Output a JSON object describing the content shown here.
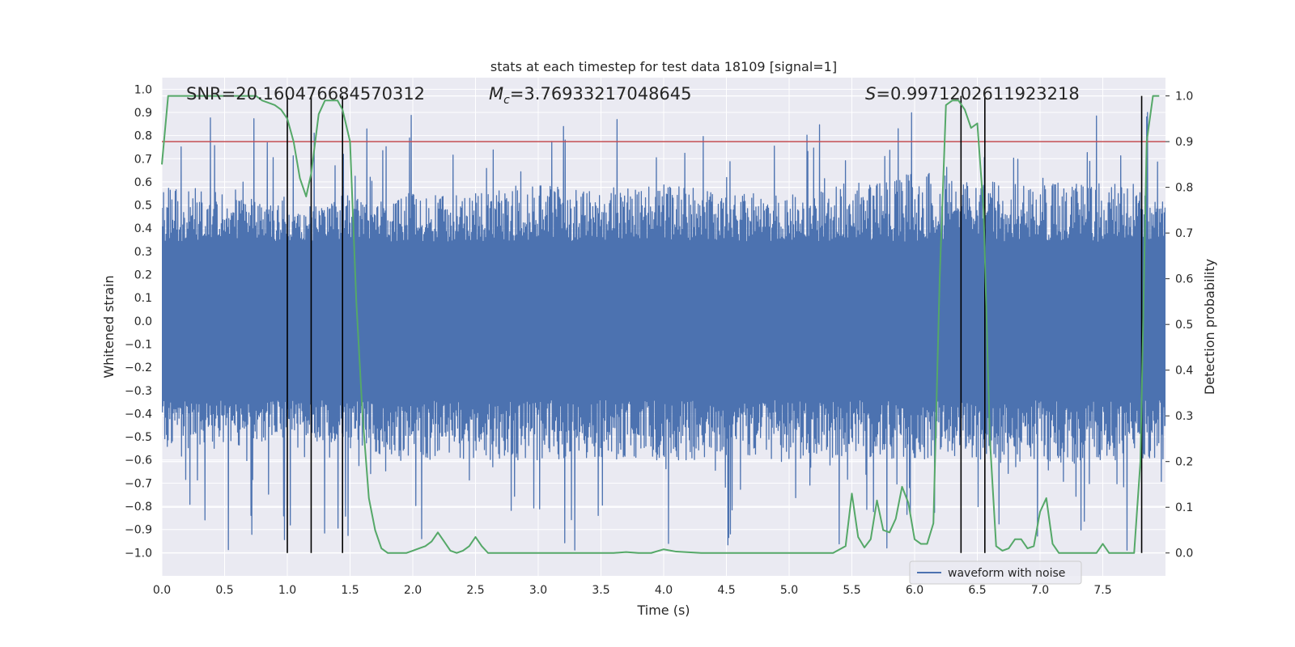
{
  "chart_data": {
    "type": "line",
    "title": "stats at each timestep for test data 18109 [signal=1]",
    "xlabel": "Time (s)",
    "ylabel": "Whitened strain",
    "y2label": "Detection probability",
    "xlim": [
      0,
      8
    ],
    "ylim": [
      -1.1,
      1.05
    ],
    "y2lim": [
      -0.05,
      1.04
    ],
    "xticks": [
      "0.0",
      "0.5",
      "1.0",
      "1.5",
      "2.0",
      "2.5",
      "3.0",
      "3.5",
      "4.0",
      "4.5",
      "5.0",
      "5.5",
      "6.0",
      "6.5",
      "7.0",
      "7.5"
    ],
    "yticks": [
      "−1.0",
      "−0.9",
      "−0.8",
      "−0.7",
      "−0.6",
      "−0.5",
      "−0.4",
      "−0.3",
      "−0.2",
      "−0.1",
      "0.0",
      "0.1",
      "0.2",
      "0.3",
      "0.4",
      "0.5",
      "0.6",
      "0.7",
      "0.8",
      "0.9",
      "1.0"
    ],
    "y2ticks": [
      "0.0",
      "0.1",
      "0.2",
      "0.3",
      "0.4",
      "0.5",
      "0.6",
      "0.7",
      "0.8",
      "0.9",
      "1.0"
    ],
    "annotations": {
      "snr": "SNR=20.160476684570312",
      "mc_symbol": "M",
      "mc_sub": "c",
      "mc_value": "=3.76933217048645",
      "s_symbol": "S",
      "s_value": "=0.9971202611923218"
    },
    "legend": {
      "label": "waveform with noise",
      "location": "lower-right"
    },
    "colors": {
      "waveform": "#4c72b0",
      "probability": "#55a868",
      "threshold": "#c44e52",
      "events": "#000000",
      "background": "#eaeaf2",
      "grid": "#ffffff"
    },
    "waveform_envelope": {
      "description": "whitened strain with noise, 8 s",
      "x": [
        0.0,
        0.5,
        1.0,
        1.2,
        1.5,
        2.0,
        2.5,
        3.0,
        3.5,
        4.0,
        4.5,
        5.0,
        5.5,
        6.0,
        6.5,
        7.0,
        7.5,
        8.0
      ],
      "upper": [
        0.6,
        0.55,
        0.5,
        0.5,
        0.55,
        0.55,
        0.55,
        0.6,
        0.55,
        0.6,
        0.55,
        0.55,
        0.6,
        0.65,
        0.6,
        0.6,
        0.6,
        0.55
      ],
      "lower": [
        -0.55,
        -0.55,
        -0.5,
        -0.5,
        -0.55,
        -0.6,
        -0.6,
        -0.6,
        -0.6,
        -0.6,
        -0.6,
        -0.6,
        -0.6,
        -0.6,
        -0.6,
        -0.65,
        -0.6,
        -0.6
      ],
      "peak_max": 0.9,
      "peak_min": -1.0
    },
    "threshold": {
      "value": 0.9,
      "axis": "y2"
    },
    "event_lines": {
      "x": [
        1.0,
        1.19,
        1.44,
        6.37,
        6.56,
        7.81
      ],
      "y_range": [
        0.0,
        1.0
      ],
      "axis": "y2"
    },
    "detection_probability": {
      "x": [
        0.0,
        0.05,
        0.1,
        0.2,
        0.3,
        0.4,
        0.5,
        0.6,
        0.7,
        0.75,
        0.8,
        0.9,
        0.95,
        1.0,
        1.05,
        1.1,
        1.15,
        1.19,
        1.25,
        1.3,
        1.35,
        1.4,
        1.44,
        1.5,
        1.55,
        1.6,
        1.65,
        1.7,
        1.75,
        1.8,
        1.85,
        1.9,
        1.95,
        2.0,
        2.05,
        2.1,
        2.15,
        2.2,
        2.25,
        2.3,
        2.35,
        2.4,
        2.45,
        2.5,
        2.55,
        2.6,
        2.7,
        2.8,
        3.0,
        3.2,
        3.4,
        3.6,
        3.7,
        3.8,
        3.9,
        4.0,
        4.1,
        4.3,
        4.6,
        5.0,
        5.2,
        5.35,
        5.45,
        5.5,
        5.55,
        5.6,
        5.65,
        5.7,
        5.75,
        5.8,
        5.85,
        5.9,
        5.95,
        6.0,
        6.05,
        6.1,
        6.15,
        6.2,
        6.25,
        6.3,
        6.35,
        6.4,
        6.45,
        6.5,
        6.55,
        6.6,
        6.65,
        6.7,
        6.75,
        6.8,
        6.85,
        6.9,
        6.95,
        7.0,
        7.05,
        7.1,
        7.15,
        7.2,
        7.25,
        7.3,
        7.35,
        7.4,
        7.45,
        7.5,
        7.55,
        7.6,
        7.65,
        7.7,
        7.75,
        7.8,
        7.85,
        7.9,
        7.95
      ],
      "y": [
        0.85,
        1.0,
        1.0,
        1.0,
        1.0,
        1.0,
        1.0,
        1.0,
        1.0,
        1.0,
        0.99,
        0.98,
        0.97,
        0.95,
        0.9,
        0.82,
        0.78,
        0.83,
        0.96,
        0.99,
        0.99,
        0.99,
        0.97,
        0.9,
        0.55,
        0.3,
        0.12,
        0.05,
        0.01,
        0.0,
        0.0,
        0.0,
        0.0,
        0.005,
        0.01,
        0.015,
        0.025,
        0.045,
        0.025,
        0.005,
        0.0,
        0.005,
        0.015,
        0.035,
        0.015,
        0.0,
        0.0,
        0.0,
        0.0,
        0.0,
        0.0,
        0.0,
        0.002,
        0.0,
        0.0,
        0.008,
        0.003,
        0.0,
        0.0,
        0.0,
        0.0,
        0.0,
        0.015,
        0.13,
        0.035,
        0.012,
        0.03,
        0.115,
        0.05,
        0.045,
        0.075,
        0.145,
        0.11,
        0.03,
        0.02,
        0.02,
        0.065,
        0.6,
        0.98,
        0.99,
        0.99,
        0.97,
        0.93,
        0.94,
        0.75,
        0.25,
        0.015,
        0.005,
        0.01,
        0.03,
        0.03,
        0.01,
        0.015,
        0.09,
        0.12,
        0.02,
        0.0,
        0.0,
        0.0,
        0.0,
        0.0,
        0.0,
        0.0,
        0.02,
        0.0,
        0.0,
        0.0,
        0.0,
        0.0,
        0.2,
        0.9,
        1.0,
        1.0
      ]
    }
  }
}
